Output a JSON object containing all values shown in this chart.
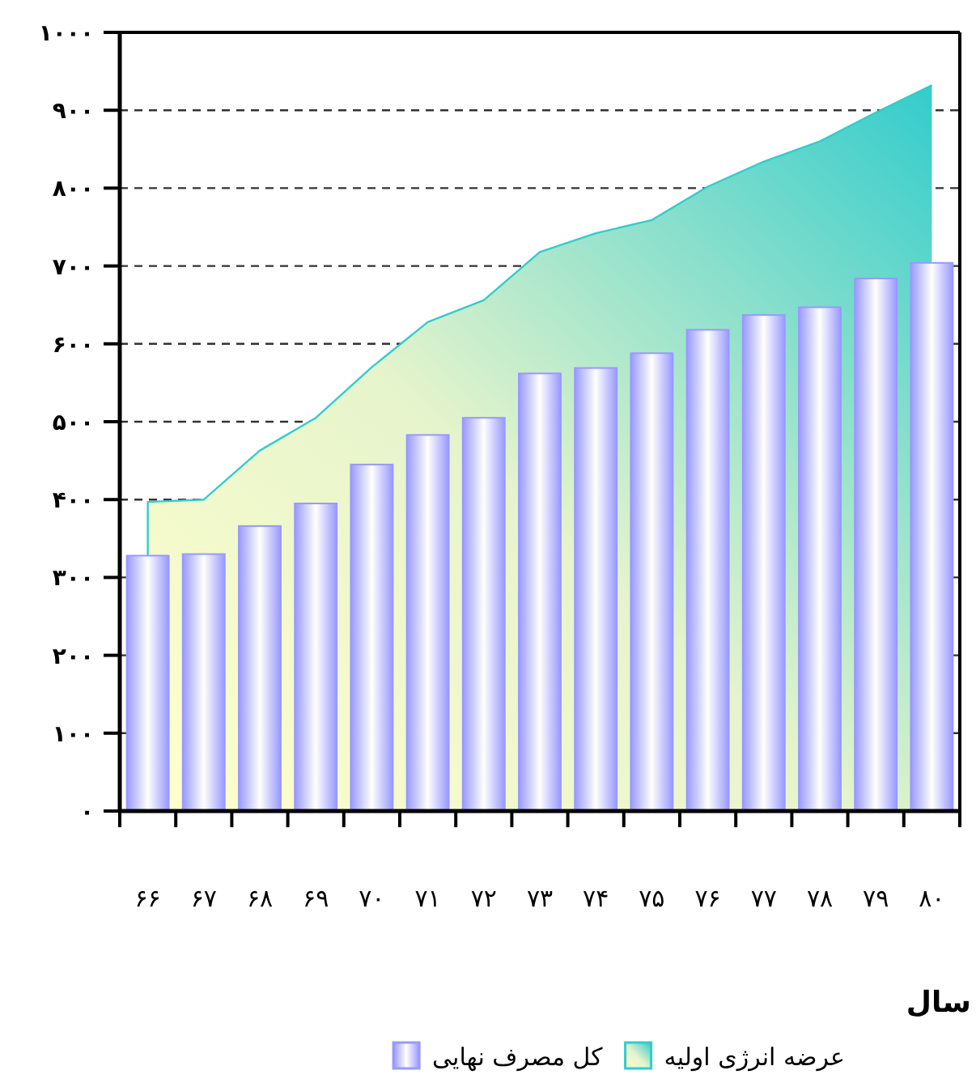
{
  "chart_data": {
    "type": "bar",
    "xlabel": "سال",
    "categories": [
      "۶۶",
      "۶۷",
      "۶۸",
      "۶۹",
      "۷۰",
      "۷۱",
      "۷۲",
      "۷۳",
      "۷۴",
      "۷۵",
      "۷۶",
      "۷۷",
      "۷۸",
      "۷۹",
      "۸۰"
    ],
    "series": [
      {
        "name": "عرضه انرژی اولیه",
        "type": "area",
        "color": "#33cccc",
        "values": [
          397,
          400,
          463,
          505,
          570,
          628,
          656,
          718,
          742,
          759,
          802,
          834,
          860,
          897,
          932
        ]
      },
      {
        "name": "کل مصرف نهایی",
        "type": "bar",
        "color": "#9999ff",
        "values": [
          328,
          330,
          366,
          395,
          445,
          483,
          505,
          562,
          569,
          588,
          618,
          637,
          647,
          684,
          704
        ]
      }
    ],
    "ylim": [
      0,
      1000
    ],
    "yticks": [
      {
        "value": 0,
        "label": "۰"
      },
      {
        "value": 100,
        "label": "۱۰۰"
      },
      {
        "value": 200,
        "label": "۲۰۰"
      },
      {
        "value": 300,
        "label": "۳۰۰"
      },
      {
        "value": 400,
        "label": "۴۰۰"
      },
      {
        "value": 500,
        "label": "۵۰۰"
      },
      {
        "value": 600,
        "label": "۶۰۰"
      },
      {
        "value": 700,
        "label": "۷۰۰"
      },
      {
        "value": 800,
        "label": "۸۰۰"
      },
      {
        "value": 900,
        "label": "۹۰۰"
      },
      {
        "value": 1000,
        "label": "۱۰۰۰"
      }
    ],
    "grid": "y",
    "legend": "bottom"
  }
}
